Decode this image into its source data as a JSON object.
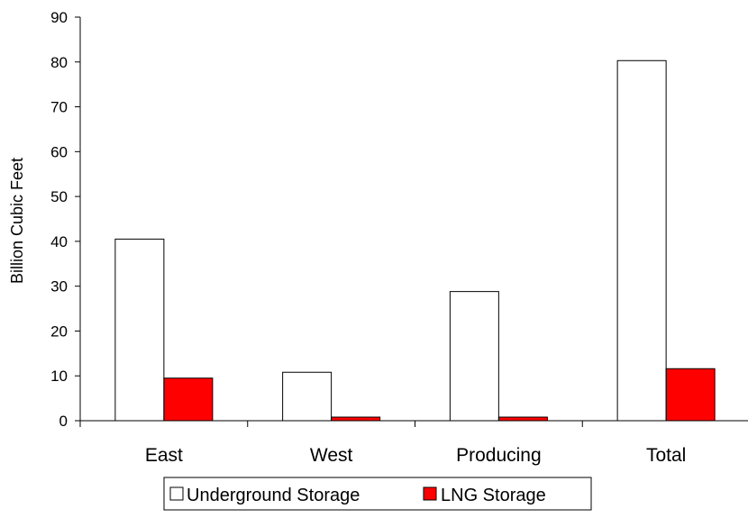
{
  "chart_data": {
    "type": "bar",
    "title": "",
    "xlabel": "",
    "ylabel": "Billion Cubic Feet",
    "categories": [
      "East",
      "West",
      "Producing",
      "Total"
    ],
    "series": [
      {
        "name": "Underground Storage",
        "values": [
          40.5,
          10.8,
          28.8,
          80.3
        ],
        "color": "#ffffff"
      },
      {
        "name": "LNG Storage",
        "values": [
          9.5,
          0.8,
          0.8,
          11.6
        ],
        "color": "#ff0000"
      }
    ],
    "ylim": [
      0,
      90
    ],
    "yticks": [
      0,
      10,
      20,
      30,
      40,
      50,
      60,
      70,
      80,
      90
    ],
    "grid": false,
    "legend_position": "bottom",
    "border_color": "#000000"
  }
}
